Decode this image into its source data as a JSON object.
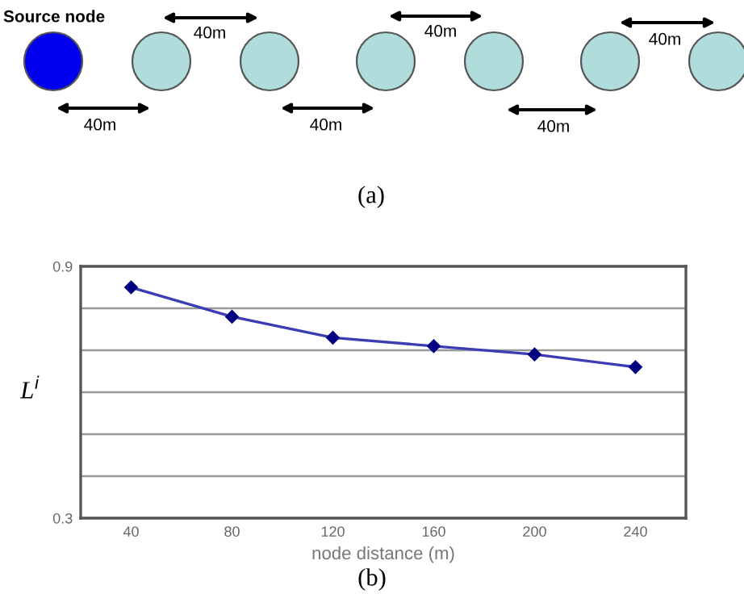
{
  "chart_data": [
    {
      "type": "other",
      "annotations": [
        "Source node",
        "40m",
        "40m",
        "40m",
        "40m",
        "40m",
        "40m",
        "(a)"
      ]
    },
    {
      "type": "line",
      "xlabel": "node distance (m)",
      "ylabel": "L$^{i}$",
      "x": [
        40,
        80,
        120,
        160,
        200,
        240
      ],
      "series": [
        {
          "color": "#3c3cb4",
          "values": [
            0.85,
            0.78,
            0.73,
            0.71,
            0.69,
            0.66
          ]
        }
      ],
      "xlim": [
        20,
        260
      ],
      "xticks": [
        40,
        80,
        120,
        160,
        200,
        240
      ],
      "ylim": [
        0.3,
        0.9
      ],
      "yticks": [
        0.3,
        {
          "value": 0.4,
          "label": null
        },
        {
          "value": 0.5,
          "label": null
        },
        {
          "value": 0.6,
          "label": null
        },
        {
          "value": 0.7,
          "label": null
        },
        {
          "value": 0.8,
          "label": null
        },
        0.9
      ],
      "grid": "y",
      "marker": "diamond",
      "line_style": "solid",
      "legend": false,
      "annotations": [
        "(b)"
      ]
    }
  ]
}
